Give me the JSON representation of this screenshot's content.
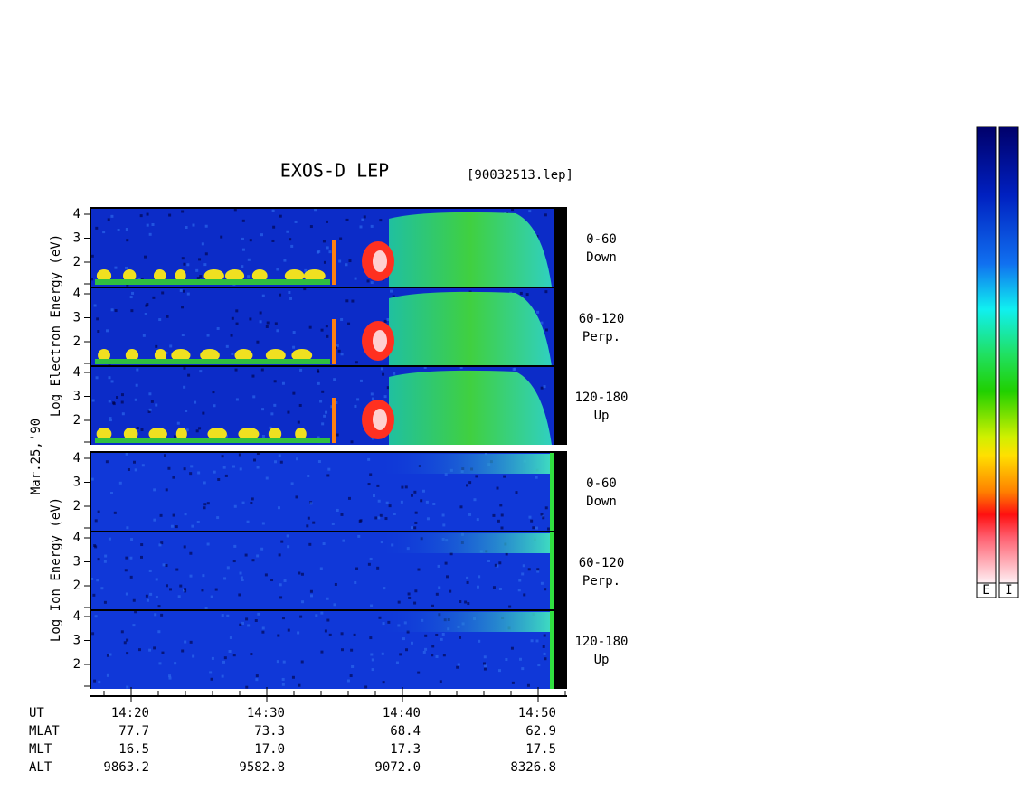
{
  "title": "EXOS-D LEP",
  "file": "[90032513.lep]",
  "axis_labels": {
    "electron": "Log  Electron  Energy (eV)",
    "date": "Mar.25,'90",
    "ion": "Log  Ion  Energy (eV)"
  },
  "panels": [
    {
      "angle": "0-60",
      "direction": "Down",
      "yticks": [
        2,
        3,
        4
      ]
    },
    {
      "angle": "60-120",
      "direction": "Perp.",
      "yticks": [
        2,
        3,
        4
      ]
    },
    {
      "angle": "120-180",
      "direction": "Up",
      "yticks": [
        2,
        3,
        4
      ]
    },
    {
      "angle": "0-60",
      "direction": "Down",
      "yticks": [
        2,
        3,
        4
      ]
    },
    {
      "angle": "60-120",
      "direction": "Perp.",
      "yticks": [
        2,
        3,
        4
      ]
    },
    {
      "angle": "120-180",
      "direction": "Up",
      "yticks": [
        2,
        3,
        4
      ]
    }
  ],
  "orbit_table": [
    {
      "label": "UT",
      "values": [
        "14:20",
        "14:30",
        "14:40",
        "14:50"
      ]
    },
    {
      "label": "MLAT",
      "values": [
        "77.7",
        "73.3",
        "68.4",
        "62.9"
      ]
    },
    {
      "label": "MLT",
      "values": [
        "16.5",
        "17.0",
        "17.3",
        "17.5"
      ]
    },
    {
      "label": "ALT",
      "values": [
        "9863.2",
        "9582.8",
        "9072.0",
        "8326.8"
      ]
    }
  ],
  "colorbars": [
    "E",
    "I"
  ]
}
